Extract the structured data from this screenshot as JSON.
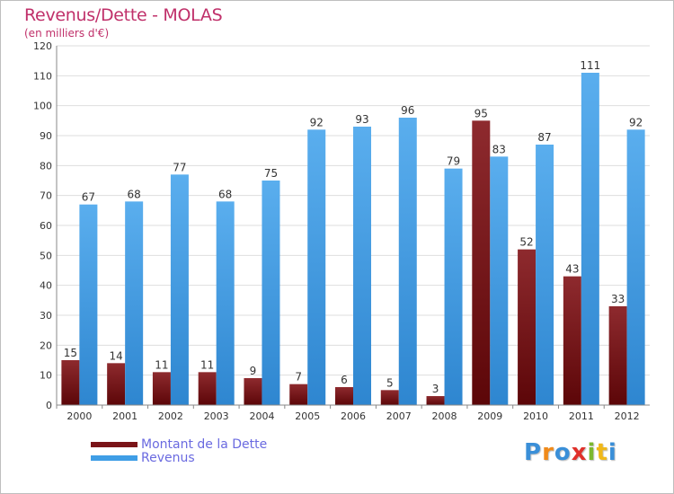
{
  "chart_data": {
    "type": "bar",
    "title": "Revenus/Dette - MOLAS",
    "subtitle": "(en milliers d'€)",
    "categories": [
      "2000",
      "2001",
      "2002",
      "2003",
      "2004",
      "2005",
      "2006",
      "2007",
      "2008",
      "2009",
      "2010",
      "2011",
      "2012"
    ],
    "series": [
      {
        "name": "Montant de la Dette",
        "color": "#7a1418",
        "values": [
          15,
          14,
          11,
          11,
          9,
          7,
          6,
          5,
          3,
          95,
          52,
          43,
          33
        ]
      },
      {
        "name": "Revenus",
        "color": "#3f9ee6",
        "values": [
          67,
          68,
          77,
          68,
          75,
          92,
          93,
          96,
          79,
          83,
          87,
          111,
          92
        ]
      }
    ],
    "ylim": [
      0,
      120
    ],
    "yticks": [
      0,
      10,
      20,
      30,
      40,
      50,
      60,
      70,
      80,
      90,
      100,
      110,
      120
    ],
    "grid": true,
    "legend_position": "bottom-left"
  },
  "logo": {
    "letters": [
      "P",
      "r",
      "o",
      "x",
      "i",
      "t",
      "i"
    ],
    "colors": [
      "#3a8fd8",
      "#f08a1a",
      "#3a8fd8",
      "#e0302a",
      "#7cb82f",
      "#f0b81a",
      "#3a8fd8"
    ]
  }
}
